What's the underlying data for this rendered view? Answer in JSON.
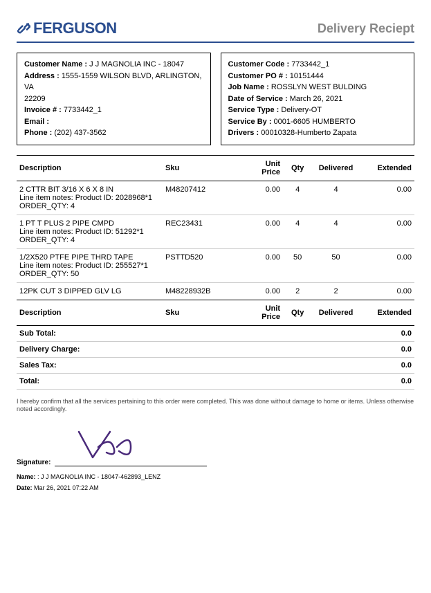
{
  "brand": "FERGUSON",
  "brand_color": "#2a4d8f",
  "doc_title": "Delivery Reciept",
  "customer": {
    "name_label": "Customer Name :",
    "name": "J J MAGNOLIA INC - 18047",
    "address_label": "Address :",
    "address": "1555-1559 WILSON BLVD, ARLINGTON, VA",
    "zip": "22209",
    "invoice_label": "Invoice # :",
    "invoice": "7733442_1",
    "email_label": "Email :",
    "email": "",
    "phone_label": "Phone :",
    "phone": "(202) 437-3562"
  },
  "service": {
    "code_label": "Customer Code :",
    "code": "7733442_1",
    "po_label": "Customer PO # :",
    "po": "10151444",
    "job_label": "Job Name :",
    "job": "ROSSLYN WEST BULDING",
    "date_label": "Date of Service :",
    "date": "March 26, 2021",
    "type_label": "Service Type :",
    "type": "Delivery-OT",
    "by_label": "Service By :",
    "by": "0001-6605 HUMBERTO",
    "drivers_label": "Drivers :",
    "drivers": "00010328-Humberto Zapata"
  },
  "table": {
    "headers": {
      "desc": "Description",
      "sku": "Sku",
      "unit_price": "Unit Price",
      "qty": "Qty",
      "delivered": "Delivered",
      "extended": "Extended"
    },
    "rows": [
      {
        "desc": "2 CTTR BIT 3/16 X 6 X 8 IN",
        "note": "Line item notes: Product ID: 2028968*1 ORDER_QTY: 4",
        "sku": "M48207412",
        "unit_price": "0.00",
        "qty": "4",
        "delivered": "4",
        "extended": "0.00"
      },
      {
        "desc": "1 PT T PLUS 2 PIPE CMPD",
        "note": "Line item notes: Product ID: 51292*1 ORDER_QTY: 4",
        "sku": "REC23431",
        "unit_price": "0.00",
        "qty": "4",
        "delivered": "4",
        "extended": "0.00"
      },
      {
        "desc": "1/2X520 PTFE PIPE THRD TAPE",
        "note": "Line item notes: Product ID: 255527*1 ORDER_QTY: 50",
        "sku": "PSTTD520",
        "unit_price": "0.00",
        "qty": "50",
        "delivered": "50",
        "extended": "0.00"
      },
      {
        "desc": "12PK CUT 3 DIPPED GLV LG",
        "note": "",
        "sku": "M48228932B",
        "unit_price": "0.00",
        "qty": "2",
        "delivered": "2",
        "extended": "0.00"
      }
    ]
  },
  "totals": {
    "sub_label": "Sub Total:",
    "sub": "0.0",
    "delivery_label": "Delivery Charge:",
    "delivery": "0.0",
    "tax_label": "Sales Tax:",
    "tax": "0.0",
    "total_label": "Total:",
    "total": "0.0"
  },
  "confirm_text": "I hereby confirm that all the services pertaining to this order were completed. This was done without damage to home or items. Unless otherwise noted accordingly.",
  "signature": {
    "sig_label": "Signature:",
    "name_label": "Name:",
    "name": ": J J MAGNOLIA INC - 18047-462893_LENZ",
    "date_label": "Date:",
    "date": "Mar 26, 2021 07:22 AM",
    "stroke_color": "#4a2a7a"
  }
}
